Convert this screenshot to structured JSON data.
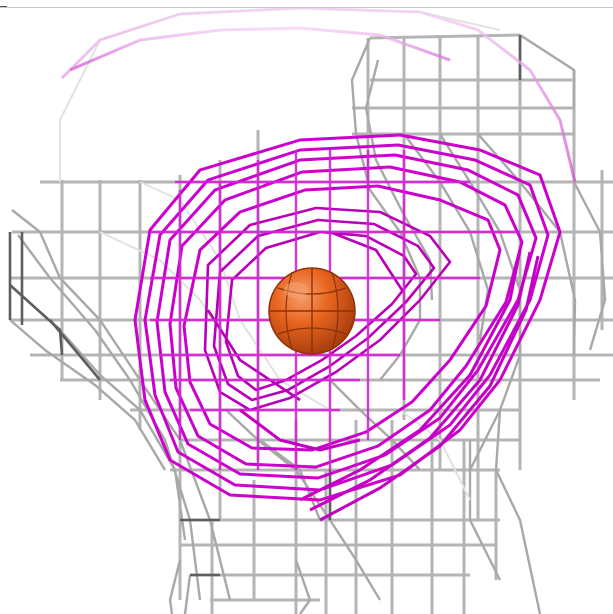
{
  "scene": {
    "name": "wireframe-head-viewport",
    "background": "#ffffff",
    "colors": {
      "mesh_gray": "#9a9a9a",
      "mesh_gray_light": "#dcdcdc",
      "mesh_dark": "#555555",
      "eye_magenta": "#cc00cc",
      "eye_magenta_light": "#f0b8f0",
      "ball_orange": "#e8661f",
      "ball_orange_dark": "#b84512",
      "ball_highlight": "#f6a070"
    },
    "objects": [
      "wireframe-head-mesh",
      "magenta-eye-rings",
      "orange-sphere"
    ]
  }
}
